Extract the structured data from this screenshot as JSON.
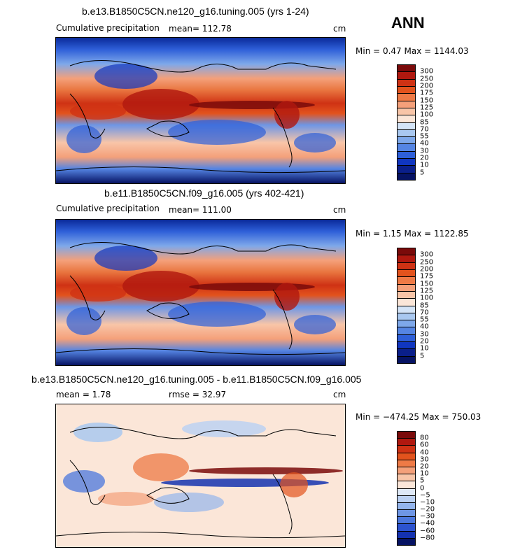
{
  "header": {
    "season": "ANN"
  },
  "panels": [
    {
      "id": "top",
      "title": "b.e13.B1850C5CN.ne120_g16.tuning.005 (yrs 1-24)",
      "left_label": "Cumulative precipitation",
      "stat_label": "mean=  112.78",
      "units": "cm",
      "minmax": "Min =    0.47  Max = 1144.03",
      "colorbar": [
        "300",
        "250",
        "200",
        "175",
        "150",
        "125",
        "100",
        "85",
        "70",
        "55",
        "40",
        "30",
        "20",
        "10",
        "5"
      ]
    },
    {
      "id": "middle",
      "title": "b.e11.B1850C5CN.f09_g16.005 (yrs 402-421)",
      "left_label": "Cumulative precipitation",
      "stat_label": "mean=  111.00",
      "units": "cm",
      "minmax": "Min =    1.15  Max = 1122.85",
      "colorbar": [
        "300",
        "250",
        "200",
        "175",
        "150",
        "125",
        "100",
        "85",
        "70",
        "55",
        "40",
        "30",
        "20",
        "10",
        "5"
      ]
    },
    {
      "id": "bottom",
      "title": "b.e13.B1850C5CN.ne120_g16.tuning.005 - b.e11.B1850C5CN.f09_g16.005",
      "left_label": "mean =    1.78",
      "stat_label": "rmse =   32.97",
      "units": "cm",
      "minmax": "Min = −474.25  Max = 750.03",
      "colorbar": [
        "80",
        "60",
        "40",
        "30",
        "20",
        "10",
        "5",
        "0",
        "−5",
        "−10",
        "−20",
        "−30",
        "−40",
        "−60",
        "−80"
      ]
    }
  ],
  "colors": {
    "abs_scale": [
      "#7a0a0a",
      "#b0180f",
      "#cf3214",
      "#e2531d",
      "#ee7a46",
      "#f4a07a",
      "#f8c5a8",
      "#fbe6d8",
      "#d4e4f7",
      "#a9c8f0",
      "#7ea8ea",
      "#5585e3",
      "#2e5fd8",
      "#1036c0",
      "#0a1f8a",
      "#061363"
    ],
    "diff_scale": [
      "#7a0a0a",
      "#b0180f",
      "#cf3214",
      "#e2531d",
      "#ee7a46",
      "#f4a07a",
      "#f8c5a8",
      "#fbe6d8",
      "#dfe9f7",
      "#bcd1f2",
      "#94b5ec",
      "#6e96e5",
      "#4b77dd",
      "#2c53cf",
      "#1432b0",
      "#061363"
    ]
  }
}
